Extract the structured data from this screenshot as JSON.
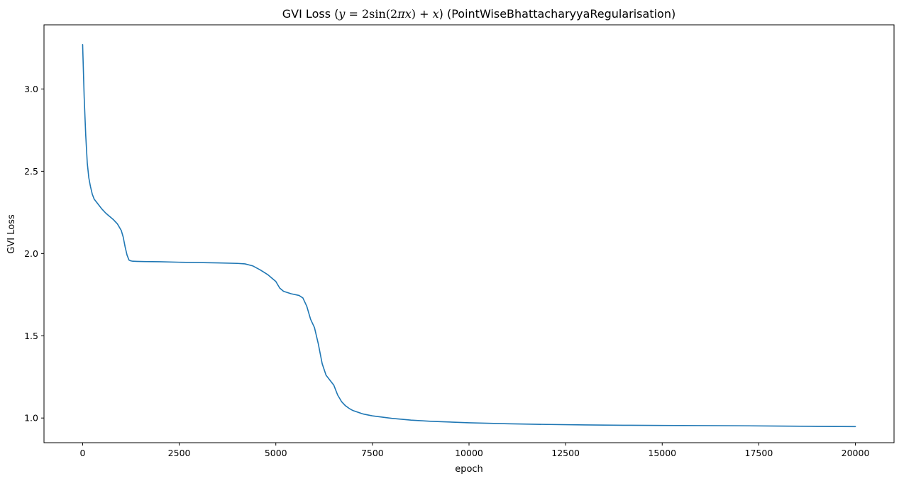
{
  "chart_data": {
    "type": "line",
    "title_prefix": "GVI Loss (",
    "title_math": {
      "y": "y",
      "eq": " = 2",
      "sin": "sin",
      "open": "(2",
      "pi": "π",
      "x1": "x",
      "close": ") + ",
      "x2": "x"
    },
    "title_suffix": ") (PointWiseBhattacharyyaRegularisation)",
    "title": "GVI Loss (y = 2sin(2πx) + x) (PointWiseBhattacharyyaRegularisation)",
    "xlabel": "epoch",
    "ylabel": "GVI Loss",
    "xlim": [
      -1000,
      21000
    ],
    "ylim": [
      0.85,
      3.39
    ],
    "xticks": [
      0,
      2500,
      5000,
      7500,
      10000,
      12500,
      15000,
      17500,
      20000
    ],
    "xtick_labels": [
      "0",
      "2500",
      "5000",
      "7500",
      "10000",
      "12500",
      "15000",
      "17500",
      "20000"
    ],
    "yticks": [
      1.0,
      1.5,
      2.0,
      2.5,
      3.0
    ],
    "ytick_labels": [
      "1.0",
      "1.5",
      "2.0",
      "2.5",
      "3.0"
    ],
    "grid": false,
    "legend": "none",
    "series": [
      {
        "color": "#1f77b4",
        "x": [
          0,
          40,
          80,
          120,
          160,
          200,
          250,
          300,
          400,
          500,
          600,
          700,
          800,
          900,
          1000,
          1050,
          1100,
          1150,
          1200,
          1250,
          1300,
          1400,
          1600,
          2000,
          2500,
          3000,
          3500,
          4000,
          4200,
          4400,
          4600,
          4800,
          5000,
          5100,
          5200,
          5400,
          5600,
          5700,
          5800,
          5900,
          6000,
          6100,
          6200,
          6300,
          6400,
          6500,
          6550,
          6600,
          6700,
          6800,
          6900,
          7000,
          7250,
          7500,
          8000,
          8500,
          9000,
          10000,
          11000,
          12000,
          13000,
          14000,
          15000,
          16000,
          17000,
          18000,
          19000,
          20000
        ],
        "y": [
          3.27,
          2.95,
          2.72,
          2.55,
          2.46,
          2.41,
          2.36,
          2.33,
          2.3,
          2.27,
          2.245,
          2.225,
          2.205,
          2.18,
          2.14,
          2.1,
          2.04,
          1.99,
          1.96,
          1.955,
          1.953,
          1.952,
          1.951,
          1.95,
          1.947,
          1.945,
          1.943,
          1.94,
          1.937,
          1.925,
          1.9,
          1.87,
          1.83,
          1.79,
          1.77,
          1.755,
          1.745,
          1.73,
          1.68,
          1.6,
          1.55,
          1.45,
          1.33,
          1.26,
          1.23,
          1.2,
          1.17,
          1.14,
          1.1,
          1.075,
          1.058,
          1.045,
          1.025,
          1.013,
          0.998,
          0.987,
          0.98,
          0.971,
          0.965,
          0.961,
          0.958,
          0.956,
          0.955,
          0.954,
          0.953,
          0.951,
          0.949,
          0.948
        ]
      }
    ]
  }
}
